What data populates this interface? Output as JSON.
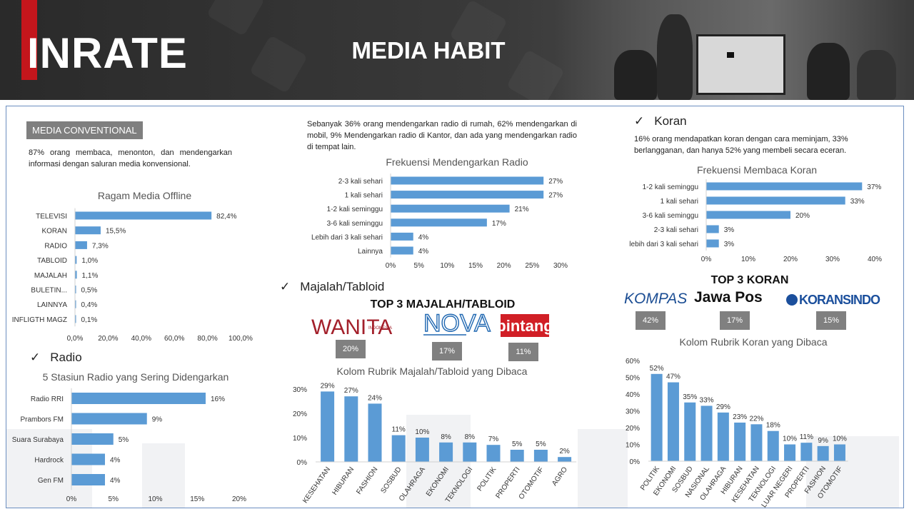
{
  "header": {
    "logo_text": "INRATE",
    "title": "MEDIA HABIT"
  },
  "colors": {
    "bar": "#5b9bd5",
    "header": "#2f2f2f",
    "accent": "#c4161c",
    "badge": "#808080"
  },
  "media_conventional": {
    "badge": "MEDIA CONVENTIONAL",
    "text": "87% orang membaca, menonton, dan mendengarkan informasi dengan saluran media konvensional."
  },
  "radio_note": "Sebanyak 36% orang mendengarkan radio di rumah, 62% mendengarkan di mobil, 9% Mendengarkan radio di Kantor, dan ada yang mendengarkan radio di tempat lain.",
  "koran_section": {
    "title": "Koran",
    "text": "16% orang mendapatkan koran dengan cara meminjam, 33% berlangganan, dan hanya 52% yang membeli secara eceran."
  },
  "radio_section": {
    "title": "Radio"
  },
  "majalah_section": {
    "title": "Majalah/Tabloid",
    "top3_title": "TOP 3 MAJALAH/TABLOID",
    "items": [
      {
        "name": "WANITA",
        "sub": "INDONESIA",
        "pct": "20%"
      },
      {
        "name": "NOVA",
        "pct": "17%"
      },
      {
        "name": "bintang",
        "pct": "11%"
      }
    ]
  },
  "koran_top3": {
    "title": "TOP 3 KORAN",
    "items": [
      {
        "name": "KOMPAS",
        "pct": "42%"
      },
      {
        "name": "Jawa Pos",
        "pct": "17%"
      },
      {
        "name": "KORANSINDO",
        "pct": "15%"
      }
    ]
  },
  "chart_data": [
    {
      "id": "ragam",
      "type": "bar",
      "orientation": "horizontal",
      "title": "Ragam Media Offline",
      "categories": [
        "TELEVISI",
        "KORAN",
        "RADIO",
        "TABLOID",
        "MAJALAH",
        "BULETIN...",
        "LAINNYA",
        "INFLIGTH MAGZ"
      ],
      "values": [
        82.4,
        15.5,
        7.3,
        1.0,
        1.1,
        0.5,
        0.4,
        0.1
      ],
      "labels": [
        "82,4%",
        "15,5%",
        "7,3%",
        "1,0%",
        "1,1%",
        "0,5%",
        "0,4%",
        "0,1%"
      ],
      "xlim": [
        0,
        100
      ],
      "ticks": [
        "0,0%",
        "20,0%",
        "40,0%",
        "60,0%",
        "80,0%",
        "100,0%"
      ]
    },
    {
      "id": "radio5",
      "type": "bar",
      "orientation": "horizontal",
      "title": "5 Stasiun Radio yang Sering Didengarkan",
      "categories": [
        "Radio RRI",
        "Prambors FM",
        "Suara Surabaya",
        "Hardrock",
        "Gen FM"
      ],
      "values": [
        16,
        9,
        5,
        4,
        4
      ],
      "labels": [
        "16%",
        "9%",
        "5%",
        "4%",
        "4%"
      ],
      "xlim": [
        0,
        20
      ],
      "ticks": [
        "0%",
        "5%",
        "10%",
        "15%",
        "20%"
      ]
    },
    {
      "id": "freqradio",
      "type": "bar",
      "orientation": "horizontal",
      "title": "Frekuensi Mendengarkan Radio",
      "categories": [
        "2-3 kali sehari",
        "1 kali sehari",
        "1-2 kali seminggu",
        "3-6 kali seminggu",
        "Lebih dari 3 kali sehari",
        "Lainnya"
      ],
      "values": [
        27,
        27,
        21,
        17,
        4,
        4
      ],
      "labels": [
        "27%",
        "27%",
        "21%",
        "17%",
        "4%",
        "4%"
      ],
      "xlim": [
        0,
        30
      ],
      "ticks": [
        "0%",
        "5%",
        "10%",
        "15%",
        "20%",
        "25%",
        "30%"
      ]
    },
    {
      "id": "freqkoran",
      "type": "bar",
      "orientation": "horizontal",
      "title": "Frekuensi Membaca Koran",
      "categories": [
        "1-2 kali seminggu",
        "1 kali sehari",
        "3-6 kali seminggu",
        "2-3 kali sehari",
        "lebih dari 3 kali sehari"
      ],
      "values": [
        37,
        33,
        20,
        3,
        3
      ],
      "labels": [
        "37%",
        "33%",
        "20%",
        "3%",
        "3%"
      ],
      "xlim": [
        0,
        40
      ],
      "ticks": [
        "0%",
        "10%",
        "20%",
        "30%",
        "40%"
      ]
    },
    {
      "id": "rubrikmajalah",
      "type": "bar",
      "orientation": "vertical",
      "title": "Kolom Rubrik Majalah/Tabloid yang Dibaca",
      "categories": [
        "KESEHATAN",
        "HIBURAN",
        "FASHION",
        "SOSBUD",
        "OLAHRAGA",
        "EKONOMI",
        "TEKNOLOGI",
        "POLITIK",
        "PROPERTI",
        "OTOMOTIF",
        "AGRO"
      ],
      "values": [
        29,
        27,
        24,
        11,
        10,
        8,
        8,
        7,
        5,
        5,
        2
      ],
      "labels": [
        "29%",
        "27%",
        "24%",
        "11%",
        "10%",
        "8%",
        "8%",
        "7%",
        "5%",
        "5%",
        "2%"
      ],
      "ylim": [
        0,
        30
      ],
      "ticks": [
        "0%",
        "10%",
        "20%",
        "30%"
      ]
    },
    {
      "id": "rubrikkoran",
      "type": "bar",
      "orientation": "vertical",
      "title": "Kolom Rubrik Koran yang Dibaca",
      "categories": [
        "POLITIK",
        "EKONOMI",
        "SOSBUD",
        "NASIONAL",
        "OLAHRAGA",
        "HIBURAN",
        "KESEHATAN",
        "TEKNOLOGI",
        "LUAR NEGERI",
        "PROPERTI",
        "FASHION",
        "OTOMOTIF"
      ],
      "values": [
        52,
        47,
        35,
        33,
        29,
        23,
        22,
        18,
        10,
        11,
        9,
        10
      ],
      "labels": [
        "52%",
        "47%",
        "35%",
        "33%",
        "29%",
        "23%",
        "22%",
        "18%",
        "10%",
        "11%",
        "9%",
        "10%"
      ],
      "ylim": [
        0,
        60
      ],
      "ticks": [
        "0%",
        "10%",
        "20%",
        "30%",
        "40%",
        "50%",
        "60%"
      ]
    }
  ]
}
